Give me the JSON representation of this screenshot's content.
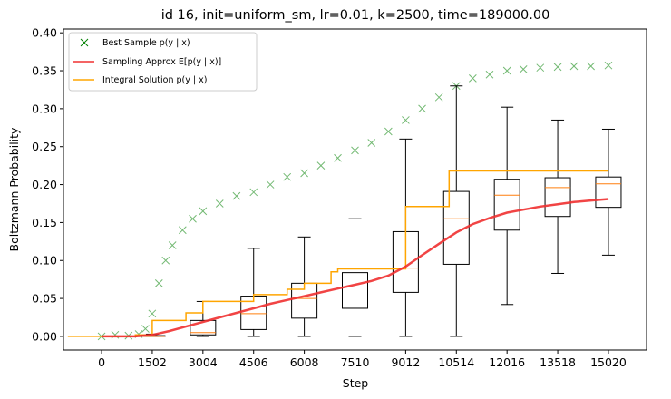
{
  "chart_data": {
    "type": "scatter",
    "title": "id 16, init=uniform_sm, lr=0.01, k=2500, time=189000.00",
    "xlabel": "Step",
    "ylabel": "Boltzmann Probability",
    "xlim": [
      -1130,
      16150
    ],
    "ylim": [
      -0.018,
      0.405
    ],
    "x_ticks": [
      0,
      1502,
      3004,
      4506,
      6008,
      7510,
      9012,
      10514,
      12016,
      13518,
      15020
    ],
    "x_tick_labels": [
      "0",
      "1502",
      "3004",
      "4506",
      "6008",
      "7510",
      "9012",
      "10514",
      "12016",
      "13518",
      "15020"
    ],
    "y_ticks": [
      0.0,
      0.05,
      0.1,
      0.15,
      0.2,
      0.25,
      0.3,
      0.35,
      0.4
    ],
    "y_tick_labels": [
      "0.00",
      "0.05",
      "0.10",
      "0.15",
      "0.20",
      "0.25",
      "0.30",
      "0.35",
      "0.40"
    ],
    "legend": {
      "position": "top-left",
      "entries": [
        {
          "label": "Best Sample p(y | x)",
          "marker": "x",
          "color": "#008000"
        },
        {
          "label": "Sampling Approx E[p(y | x)]",
          "marker": "line",
          "color": "#f03030"
        },
        {
          "label": "Integral Solution p(y | x)",
          "marker": "line",
          "color": "#ffa500"
        }
      ]
    },
    "series": [
      {
        "name": "Best Sample p(y | x)",
        "kind": "scatter",
        "color": "#008000",
        "points": [
          [
            0,
            0.0
          ],
          [
            400,
            0.002
          ],
          [
            800,
            0.001
          ],
          [
            1100,
            0.003
          ],
          [
            1300,
            0.01
          ],
          [
            1500,
            0.03
          ],
          [
            1700,
            0.07
          ],
          [
            1900,
            0.1
          ],
          [
            2100,
            0.12
          ],
          [
            2400,
            0.14
          ],
          [
            2700,
            0.155
          ],
          [
            3004,
            0.165
          ],
          [
            3500,
            0.175
          ],
          [
            4000,
            0.185
          ],
          [
            4506,
            0.19
          ],
          [
            5000,
            0.2
          ],
          [
            5500,
            0.21
          ],
          [
            6008,
            0.215
          ],
          [
            6500,
            0.225
          ],
          [
            7000,
            0.235
          ],
          [
            7510,
            0.245
          ],
          [
            8000,
            0.255
          ],
          [
            8500,
            0.27
          ],
          [
            9012,
            0.285
          ],
          [
            9500,
            0.3
          ],
          [
            10000,
            0.315
          ],
          [
            10514,
            0.33
          ],
          [
            11000,
            0.34
          ],
          [
            11500,
            0.345
          ],
          [
            12016,
            0.35
          ],
          [
            12500,
            0.352
          ],
          [
            13000,
            0.354
          ],
          [
            13518,
            0.355
          ],
          [
            14000,
            0.356
          ],
          [
            14500,
            0.356
          ],
          [
            15020,
            0.357
          ]
        ]
      },
      {
        "name": "Sampling Approx E[p(y | x)]",
        "kind": "line",
        "color": "#f03030",
        "points": [
          [
            0,
            0.0
          ],
          [
            1000,
            0.0
          ],
          [
            1502,
            0.002
          ],
          [
            2000,
            0.007
          ],
          [
            2500,
            0.013
          ],
          [
            3004,
            0.019
          ],
          [
            3500,
            0.025
          ],
          [
            4000,
            0.031
          ],
          [
            4506,
            0.037
          ],
          [
            5000,
            0.043
          ],
          [
            5500,
            0.048
          ],
          [
            6008,
            0.053
          ],
          [
            6500,
            0.058
          ],
          [
            7000,
            0.063
          ],
          [
            7510,
            0.068
          ],
          [
            8000,
            0.073
          ],
          [
            8500,
            0.08
          ],
          [
            9012,
            0.092
          ],
          [
            9500,
            0.107
          ],
          [
            10000,
            0.122
          ],
          [
            10514,
            0.137
          ],
          [
            11000,
            0.148
          ],
          [
            11500,
            0.156
          ],
          [
            12016,
            0.163
          ],
          [
            12500,
            0.167
          ],
          [
            13000,
            0.171
          ],
          [
            13518,
            0.174
          ],
          [
            14000,
            0.177
          ],
          [
            14500,
            0.179
          ],
          [
            15020,
            0.181
          ]
        ]
      },
      {
        "name": "Integral Solution p(y | x)",
        "kind": "step",
        "color": "#ffa500",
        "points": [
          [
            -1000,
            0.0
          ],
          [
            1000,
            0.0
          ],
          [
            1000,
            0.002
          ],
          [
            1502,
            0.002
          ],
          [
            1502,
            0.021
          ],
          [
            2500,
            0.021
          ],
          [
            2500,
            0.031
          ],
          [
            3004,
            0.031
          ],
          [
            3004,
            0.046
          ],
          [
            4506,
            0.046
          ],
          [
            4506,
            0.055
          ],
          [
            5500,
            0.055
          ],
          [
            5500,
            0.062
          ],
          [
            6008,
            0.062
          ],
          [
            6008,
            0.07
          ],
          [
            6800,
            0.07
          ],
          [
            6800,
            0.085
          ],
          [
            7000,
            0.085
          ],
          [
            7000,
            0.089
          ],
          [
            9012,
            0.089
          ],
          [
            9012,
            0.171
          ],
          [
            10300,
            0.171
          ],
          [
            10300,
            0.218
          ],
          [
            15020,
            0.218
          ]
        ]
      }
    ],
    "boxplots": [
      {
        "x": 1502,
        "whisker_low": 0.0,
        "q1": 0.0,
        "median": 0.0,
        "q3": 0.001,
        "whisker_high": 0.003
      },
      {
        "x": 3004,
        "whisker_low": 0.0,
        "q1": 0.002,
        "median": 0.005,
        "q3": 0.021,
        "whisker_high": 0.046
      },
      {
        "x": 4506,
        "whisker_low": 0.0,
        "q1": 0.009,
        "median": 0.03,
        "q3": 0.053,
        "whisker_high": 0.116
      },
      {
        "x": 6008,
        "whisker_low": 0.0,
        "q1": 0.024,
        "median": 0.05,
        "q3": 0.07,
        "whisker_high": 0.131
      },
      {
        "x": 7510,
        "whisker_low": 0.0,
        "q1": 0.037,
        "median": 0.065,
        "q3": 0.084,
        "whisker_high": 0.155
      },
      {
        "x": 9012,
        "whisker_low": 0.0,
        "q1": 0.058,
        "median": 0.09,
        "q3": 0.138,
        "whisker_high": 0.26
      },
      {
        "x": 10514,
        "whisker_low": 0.0,
        "q1": 0.095,
        "median": 0.155,
        "q3": 0.191,
        "whisker_high": 0.33
      },
      {
        "x": 12016,
        "whisker_low": 0.042,
        "q1": 0.14,
        "median": 0.186,
        "q3": 0.207,
        "whisker_high": 0.302
      },
      {
        "x": 13518,
        "whisker_low": 0.083,
        "q1": 0.158,
        "median": 0.196,
        "q3": 0.209,
        "whisker_high": 0.285
      },
      {
        "x": 15020,
        "whisker_low": 0.107,
        "q1": 0.17,
        "median": 0.201,
        "q3": 0.21,
        "whisker_high": 0.273
      }
    ]
  }
}
